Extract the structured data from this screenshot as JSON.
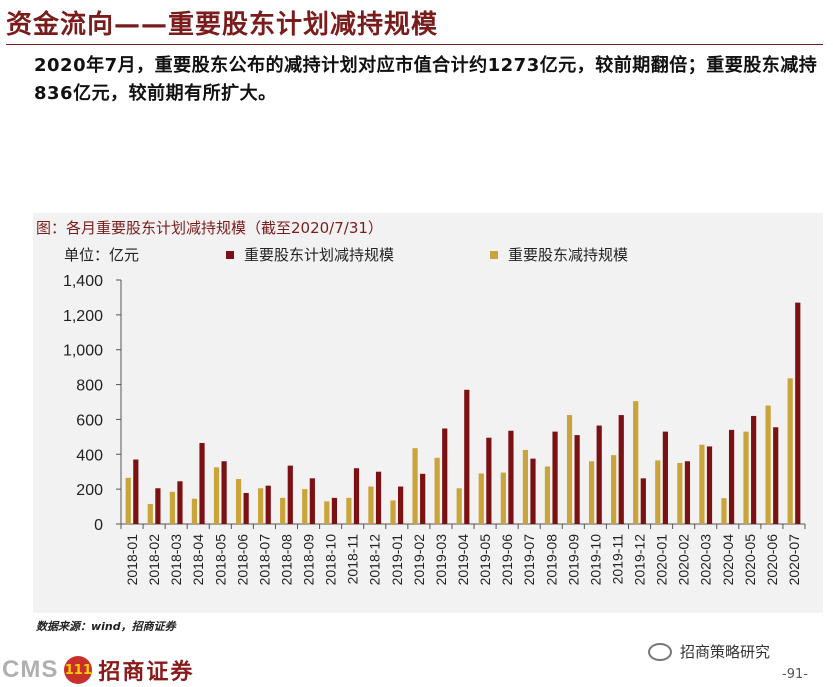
{
  "slide": {
    "title": "资金流向——重要股东计划减持规模",
    "summary": "2020年7月，重要股东公布的减持计划对应市值合计约1273亿元，较前期翻倍；重要股东减持836亿元，较前期有所扩大。",
    "source": "数据来源：wind，招商证券",
    "logo_text": "CMS",
    "logo_badge": "111",
    "logo_cn": "招商证券",
    "wechat_label": "招商策略研究",
    "page_number": "-91-"
  },
  "colors": {
    "plan": "#7b1113",
    "actual": "#c9a43a",
    "title": "#7a1c1c",
    "panel": "#f2f2f2"
  },
  "chart_data": {
    "type": "bar",
    "title": "图：各月重要股东计划减持规模（截至2020/7/31）",
    "unit": "单位：亿元",
    "ylim": [
      0,
      1400
    ],
    "yticks": [
      "0",
      "200",
      "400",
      "600",
      "800",
      "1,000",
      "1,200",
      "1,400"
    ],
    "categories": [
      "2018-01",
      "2018-02",
      "2018-03",
      "2018-04",
      "2018-05",
      "2018-06",
      "2018-07",
      "2018-08",
      "2018-09",
      "2018-10",
      "2018-11",
      "2018-12",
      "2019-01",
      "2019-02",
      "2019-03",
      "2019-04",
      "2019-05",
      "2019-06",
      "2019-07",
      "2019-08",
      "2019-09",
      "2019-10",
      "2019-11",
      "2019-12",
      "2020-01",
      "2020-02",
      "2020-03",
      "2020-04",
      "2020-05",
      "2020-06",
      "2020-07"
    ],
    "series": [
      {
        "name": "重要股东计划减持规模",
        "color": "#7b1113",
        "values": [
          370,
          205,
          245,
          465,
          360,
          178,
          220,
          335,
          262,
          150,
          320,
          300,
          215,
          288,
          548,
          770,
          495,
          535,
          375,
          530,
          510,
          565,
          625,
          262,
          530,
          360,
          445,
          540,
          620,
          555,
          1270
        ]
      },
      {
        "name": "重要股东减持规模",
        "color": "#c9a43a",
        "values": [
          265,
          115,
          185,
          145,
          325,
          258,
          205,
          150,
          200,
          130,
          150,
          215,
          135,
          435,
          380,
          205,
          290,
          295,
          425,
          330,
          625,
          360,
          395,
          705,
          365,
          350,
          455,
          148,
          530,
          680,
          836
        ]
      }
    ]
  }
}
